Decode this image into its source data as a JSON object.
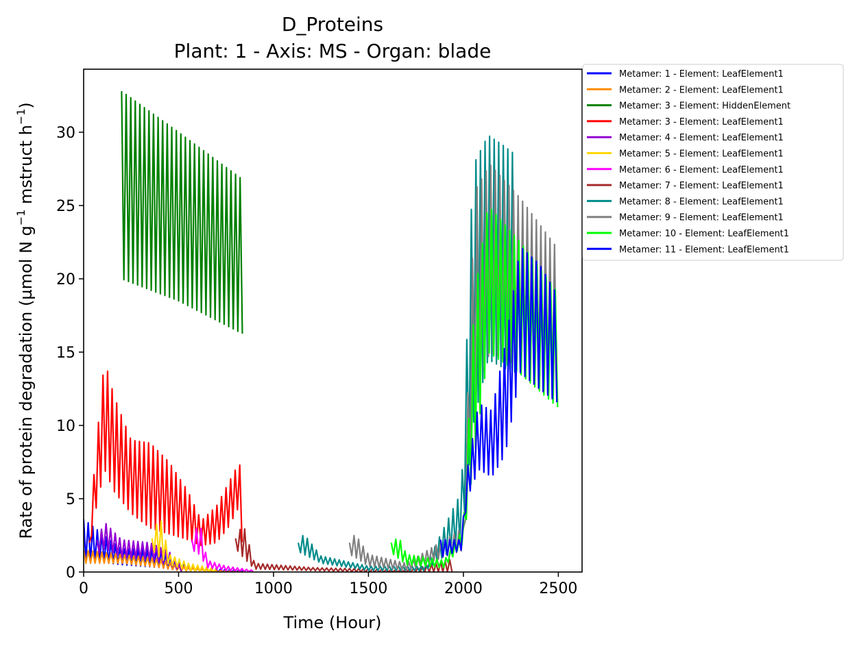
{
  "chart_data": {
    "type": "line",
    "title": "D_Proteins",
    "subtitle": "Plant: 1 - Axis: MS - Organ: blade",
    "xlabel": "Time (Hour)",
    "ylabel_main": "Rate of protein degradation (µmol N g",
    "ylabel_sup1": "−1",
    "ylabel_mid": " mstruct h",
    "ylabel_sup2": "−1",
    "ylabel_end": ")",
    "xlim": [
      0,
      2625
    ],
    "ylim": [
      0,
      34.3
    ],
    "xticks": [
      0,
      500,
      1000,
      1500,
      2000,
      2500
    ],
    "yticks": [
      0,
      5,
      10,
      15,
      20,
      25,
      30
    ],
    "xtick_labels": [
      "0",
      "500",
      "1000",
      "1500",
      "2000",
      "2500"
    ],
    "ytick_labels": [
      "0",
      "5",
      "10",
      "15",
      "20",
      "25",
      "30"
    ],
    "grid": false,
    "legend_position": "outside-top-right",
    "legend": [
      "Metamer: 1 - Element: LeafElement1",
      "Metamer: 2 - Element: LeafElement1",
      "Metamer: 3 - Element: HiddenElement",
      "Metamer: 3 - Element: LeafElement1",
      "Metamer: 4 - Element: LeafElement1",
      "Metamer: 5 - Element: LeafElement1",
      "Metamer: 6 - Element: LeafElement1",
      "Metamer: 7 - Element: LeafElement1",
      "Metamer: 8 - Element: LeafElement1",
      "Metamer: 9 - Element: LeafElement1",
      "Metamer: 10 - Element: LeafElement1",
      "Metamer: 11 - Element: LeafElement1"
    ],
    "series": [
      {
        "name": "Metamer: 1 - Element: LeafElement1",
        "color": "#0000ff",
        "x": [
          0,
          200,
          400,
          500,
          700,
          850
        ],
        "upper": [
          3.6,
          1.6,
          1.6,
          0.6,
          0.2,
          0.1
        ],
        "lower": [
          0.8,
          0.5,
          0.3,
          0.1,
          0.0,
          0.0
        ]
      },
      {
        "name": "Metamer: 2 - Element: LeafElement1",
        "color": "#ff8c00",
        "x": [
          0,
          200,
          400,
          500,
          700,
          850
        ],
        "upper": [
          1.5,
          1.2,
          0.9,
          0.4,
          0.1,
          0.0
        ],
        "lower": [
          0.6,
          0.6,
          0.3,
          0.1,
          0.0,
          0.0
        ]
      },
      {
        "name": "Metamer: 3 - Element: HiddenElement",
        "color": "#008000",
        "x": [
          200,
          500,
          845
        ],
        "upper": [
          32.8,
          30.0,
          26.7
        ],
        "lower": [
          20.0,
          18.5,
          16.2
        ]
      },
      {
        "name": "Metamer: 3 - Element: LeafElement1",
        "color": "#ff0000",
        "x": [
          30,
          60,
          110,
          160,
          250,
          350,
          450,
          550,
          620,
          700,
          760,
          800,
          820,
          845
        ],
        "upper": [
          2.0,
          7.8,
          14.5,
          12.0,
          9.0,
          8.8,
          7.5,
          5.5,
          3.5,
          4.5,
          6.0,
          7.0,
          7.9,
          0.3
        ],
        "lower": [
          1.5,
          4.0,
          7.0,
          5.5,
          4.0,
          3.0,
          2.6,
          2.2,
          1.8,
          2.0,
          3.0,
          4.0,
          4.5,
          0.1
        ]
      },
      {
        "name": "Metamer: 4 - Element: LeafElement1",
        "color": "#9400d3",
        "x": [
          70,
          110,
          200,
          350,
          450,
          520
        ],
        "upper": [
          2.2,
          3.4,
          2.2,
          2.0,
          1.4,
          0.2
        ],
        "lower": [
          1.2,
          1.6,
          1.0,
          0.9,
          0.5,
          0.0
        ]
      },
      {
        "name": "Metamer: 5 - Element: LeafElement1",
        "color": "#ffd700",
        "x": [
          360,
          400,
          450,
          550,
          700
        ],
        "upper": [
          2.3,
          3.9,
          1.2,
          0.6,
          0.2
        ],
        "lower": [
          1.5,
          1.0,
          0.5,
          0.1,
          0.0
        ]
      },
      {
        "name": "Metamer: 6 - Element: LeafElement1",
        "color": "#ff00ff",
        "x": [
          570,
          610,
          650,
          750,
          900
        ],
        "upper": [
          2.2,
          3.5,
          0.8,
          0.4,
          0.1
        ],
        "lower": [
          1.5,
          1.2,
          0.3,
          0.1,
          0.0
        ]
      },
      {
        "name": "Metamer: 7 - Element: LeafElement1",
        "color": "#a52a2a",
        "x": [
          800,
          840,
          900,
          1200,
          1500,
          1700,
          1950
        ],
        "upper": [
          2.3,
          3.3,
          0.6,
          0.3,
          0.2,
          0.1,
          0.9
        ],
        "lower": [
          1.6,
          1.0,
          0.2,
          0.1,
          0.0,
          0.0,
          0.0
        ]
      },
      {
        "name": "Metamer: 8 - Element: LeafElement1",
        "color": "#008b8b",
        "x": [
          1130,
          1160,
          1250,
          1500,
          1800,
          1990,
          2050,
          2130,
          2200,
          2270
        ],
        "upper": [
          2.0,
          2.6,
          1.1,
          0.4,
          0.4,
          5.5,
          27.7,
          29.8,
          29.2,
          28.5
        ],
        "lower": [
          1.4,
          1.2,
          0.6,
          0.1,
          0.1,
          2.0,
          10.0,
          14.5,
          14.0,
          13.6
        ]
      },
      {
        "name": "Metamer: 9 - Element: LeafElement1",
        "color": "#808080",
        "x": [
          1400,
          1430,
          1500,
          1700,
          2000,
          2060,
          2140,
          2300,
          2500
        ],
        "upper": [
          2.0,
          2.6,
          1.2,
          0.6,
          3.0,
          26.0,
          27.8,
          25.5,
          22.0
        ],
        "lower": [
          1.2,
          1.0,
          0.4,
          0.1,
          1.5,
          12.0,
          15.0,
          14.0,
          11.5
        ]
      },
      {
        "name": "Metamer: 10 - Element: LeafElement1",
        "color": "#00ff00",
        "x": [
          1620,
          1660,
          1700,
          1900,
          2000,
          2060,
          2130,
          2300,
          2500
        ],
        "upper": [
          2.0,
          2.4,
          1.2,
          0.8,
          3.0,
          19.0,
          25.0,
          22.5,
          19.0
        ],
        "lower": [
          1.3,
          0.9,
          0.5,
          0.3,
          2.0,
          8.0,
          15.0,
          13.5,
          11.2
        ]
      },
      {
        "name": "Metamer: 11 - Element: LeafElement1",
        "color": "#0000ff",
        "x": [
          1880,
          1990,
          2020,
          2080,
          2150,
          2220,
          2300,
          2400,
          2500
        ],
        "upper": [
          2.2,
          2.2,
          7.0,
          11.5,
          11.0,
          15.5,
          22.2,
          21.0,
          18.8
        ],
        "lower": [
          1.0,
          1.5,
          5.0,
          7.0,
          6.5,
          8.0,
          13.6,
          12.5,
          11.5
        ]
      }
    ]
  }
}
